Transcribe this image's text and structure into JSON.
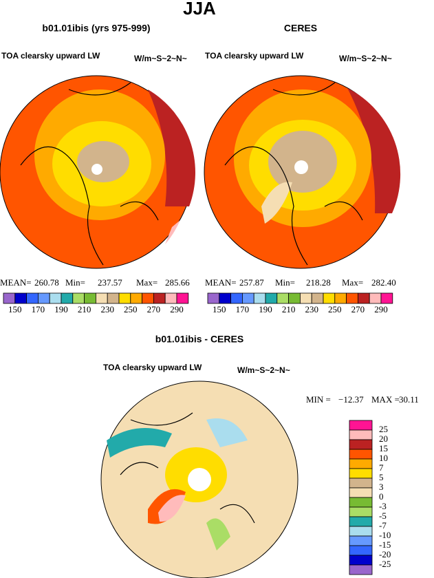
{
  "title": "JJA",
  "panels": [
    {
      "title": "b01.01ibis (yrs 975-999)",
      "variable": "TOA clearsky upward LW",
      "units": "W/m~S~2~N~",
      "stats": [
        {
          "label": "MEAN=",
          "value": "260.78"
        },
        {
          "label": "Min=",
          "value": "237.57"
        },
        {
          "label": "Max=",
          "value": "285.66"
        }
      ]
    },
    {
      "title": "CERES",
      "variable": "TOA clearsky upward LW",
      "units": "W/m~S~2~N~",
      "stats": [
        {
          "label": "MEAN=",
          "value": "257.87"
        },
        {
          "label": "Min=",
          "value": "218.28"
        },
        {
          "label": "Max=",
          "value": "282.40"
        }
      ]
    },
    {
      "title": "b01.01ibis - CERES",
      "variable": "TOA clearsky upward LW",
      "units": "W/m~S~2~N~",
      "stats": [
        {
          "label": "MIN =",
          "value": "−12.37"
        },
        {
          "label": "MAX =",
          "value": "30.11"
        }
      ]
    }
  ],
  "colorbar_top": {
    "colors": [
      "#9966cc",
      "#0000cc",
      "#3366ff",
      "#6699ff",
      "#aaddee",
      "#22aaaa",
      "#aadd66",
      "#77bb33",
      "#f5deb3",
      "#d2b48c",
      "#ffdd00",
      "#ffaa00",
      "#ff5500",
      "#bb2222",
      "#ffbbbb",
      "#ff1493"
    ],
    "labels": [
      150,
      170,
      190,
      210,
      230,
      250,
      270,
      290
    ]
  },
  "colorbar_diff": {
    "colors": [
      "#ff1493",
      "#ffbbbb",
      "#bb2222",
      "#ff5500",
      "#ffaa00",
      "#ffdd00",
      "#d2b48c",
      "#f5deb3",
      "#77bb33",
      "#aadd66",
      "#22aaaa",
      "#aaddee",
      "#6699ff",
      "#3366ff",
      "#0000cc",
      "#9966cc"
    ],
    "labels": [
      25,
      20,
      15,
      10,
      7,
      5,
      3,
      0,
      -3,
      -5,
      -7,
      -10,
      -15,
      -20,
      -25
    ]
  }
}
